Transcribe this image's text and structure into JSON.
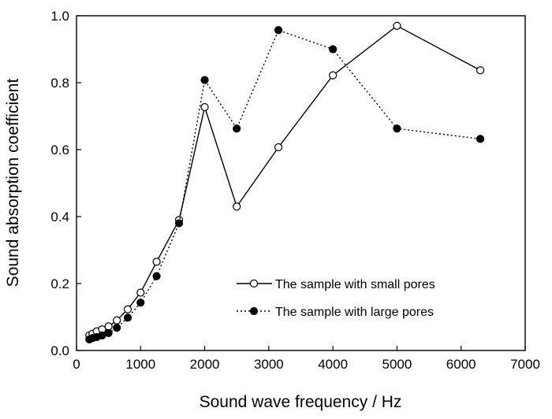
{
  "chart_data": {
    "type": "line",
    "title": "",
    "xlabel": "Sound wave frequency / Hz",
    "ylabel": "Sound absorption coefficient",
    "xlim": [
      0,
      7000
    ],
    "ylim": [
      0,
      1.0
    ],
    "xticks": [
      0,
      1000,
      2000,
      3000,
      4000,
      5000,
      6000,
      7000
    ],
    "yticks": [
      0.0,
      0.2,
      0.4,
      0.6,
      0.8,
      1.0
    ],
    "xtick_labels": [
      "0",
      "1000",
      "2000",
      "3000",
      "4000",
      "5000",
      "6000",
      "7000"
    ],
    "ytick_labels": [
      "0.0",
      "0.2",
      "0.4",
      "0.6",
      "0.8",
      "1.0"
    ],
    "grid": false,
    "legend_position": "bottom-right",
    "series": [
      {
        "name": "The sample with small pores",
        "line_style": "solid",
        "marker": "open-circle",
        "color": "#000000",
        "x": [
          200,
          250,
          315,
          400,
          500,
          630,
          800,
          1000,
          1250,
          1600,
          2000,
          2500,
          3150,
          4000,
          5000,
          6300
        ],
        "values": [
          0.045,
          0.05,
          0.057,
          0.063,
          0.072,
          0.09,
          0.123,
          0.173,
          0.265,
          0.39,
          0.727,
          0.43,
          0.607,
          0.822,
          0.97,
          0.837
        ]
      },
      {
        "name": "The sample with large pores",
        "line_style": "dotted",
        "marker": "filled-circle",
        "color": "#000000",
        "x": [
          200,
          250,
          315,
          400,
          500,
          630,
          800,
          1000,
          1250,
          1600,
          2000,
          2500,
          3150,
          4000,
          5000,
          6300
        ],
        "values": [
          0.033,
          0.037,
          0.04,
          0.045,
          0.052,
          0.068,
          0.098,
          0.143,
          0.222,
          0.38,
          0.808,
          0.663,
          0.957,
          0.9,
          0.663,
          0.632
        ]
      }
    ]
  }
}
